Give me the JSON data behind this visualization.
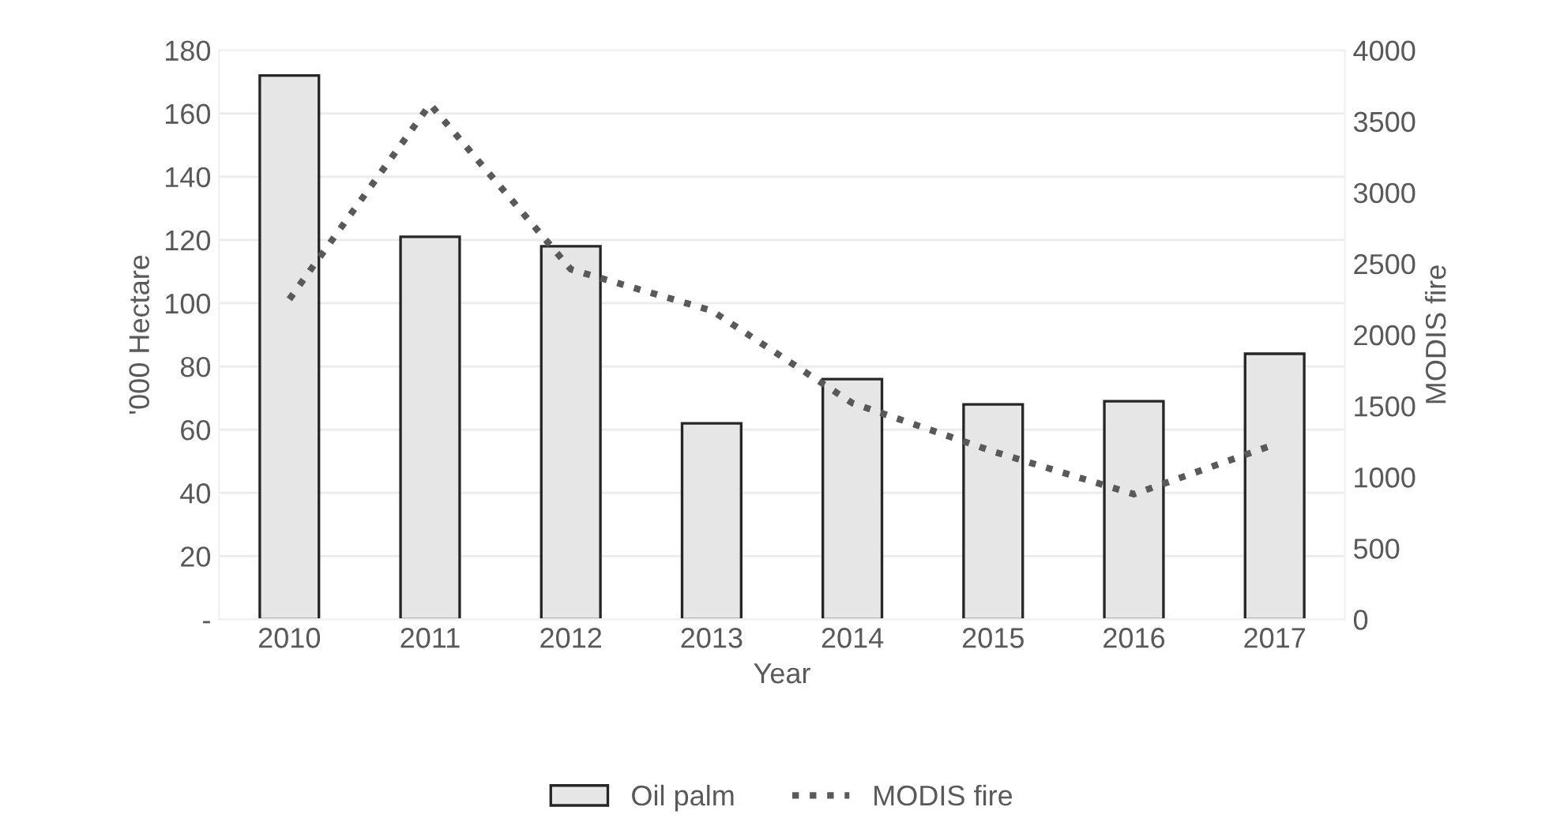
{
  "chart_data": {
    "type": "bar",
    "xlabel": "Year",
    "ylabel": "'000 Hectare",
    "y2label": "MODIS fire",
    "categories": [
      "2010",
      "2011",
      "2012",
      "2013",
      "2014",
      "2015",
      "2016",
      "2017"
    ],
    "series": [
      {
        "name": "Oil palm",
        "color": "#e6e6e6",
        "values": [
          172,
          121,
          118,
          62,
          76,
          68,
          69,
          84
        ]
      },
      {
        "name": "MODIS fire",
        "type": "line",
        "axis": "y2",
        "color": "#595959",
        "line_style": "dotted",
        "values": [
          2250,
          3620,
          2460,
          2170,
          1520,
          1180,
          880,
          1230
        ]
      }
    ],
    "ylim": [
      0,
      180
    ],
    "yticks": [
      {
        "value": 0,
        "label": "-"
      },
      20,
      40,
      60,
      80,
      100,
      120,
      140,
      160,
      180
    ],
    "y2lim": [
      0,
      4000
    ],
    "y2ticks": [
      0,
      500,
      1000,
      1500,
      2000,
      2500,
      3000,
      3500,
      4000
    ],
    "grid": "y",
    "legend": "bottom"
  }
}
